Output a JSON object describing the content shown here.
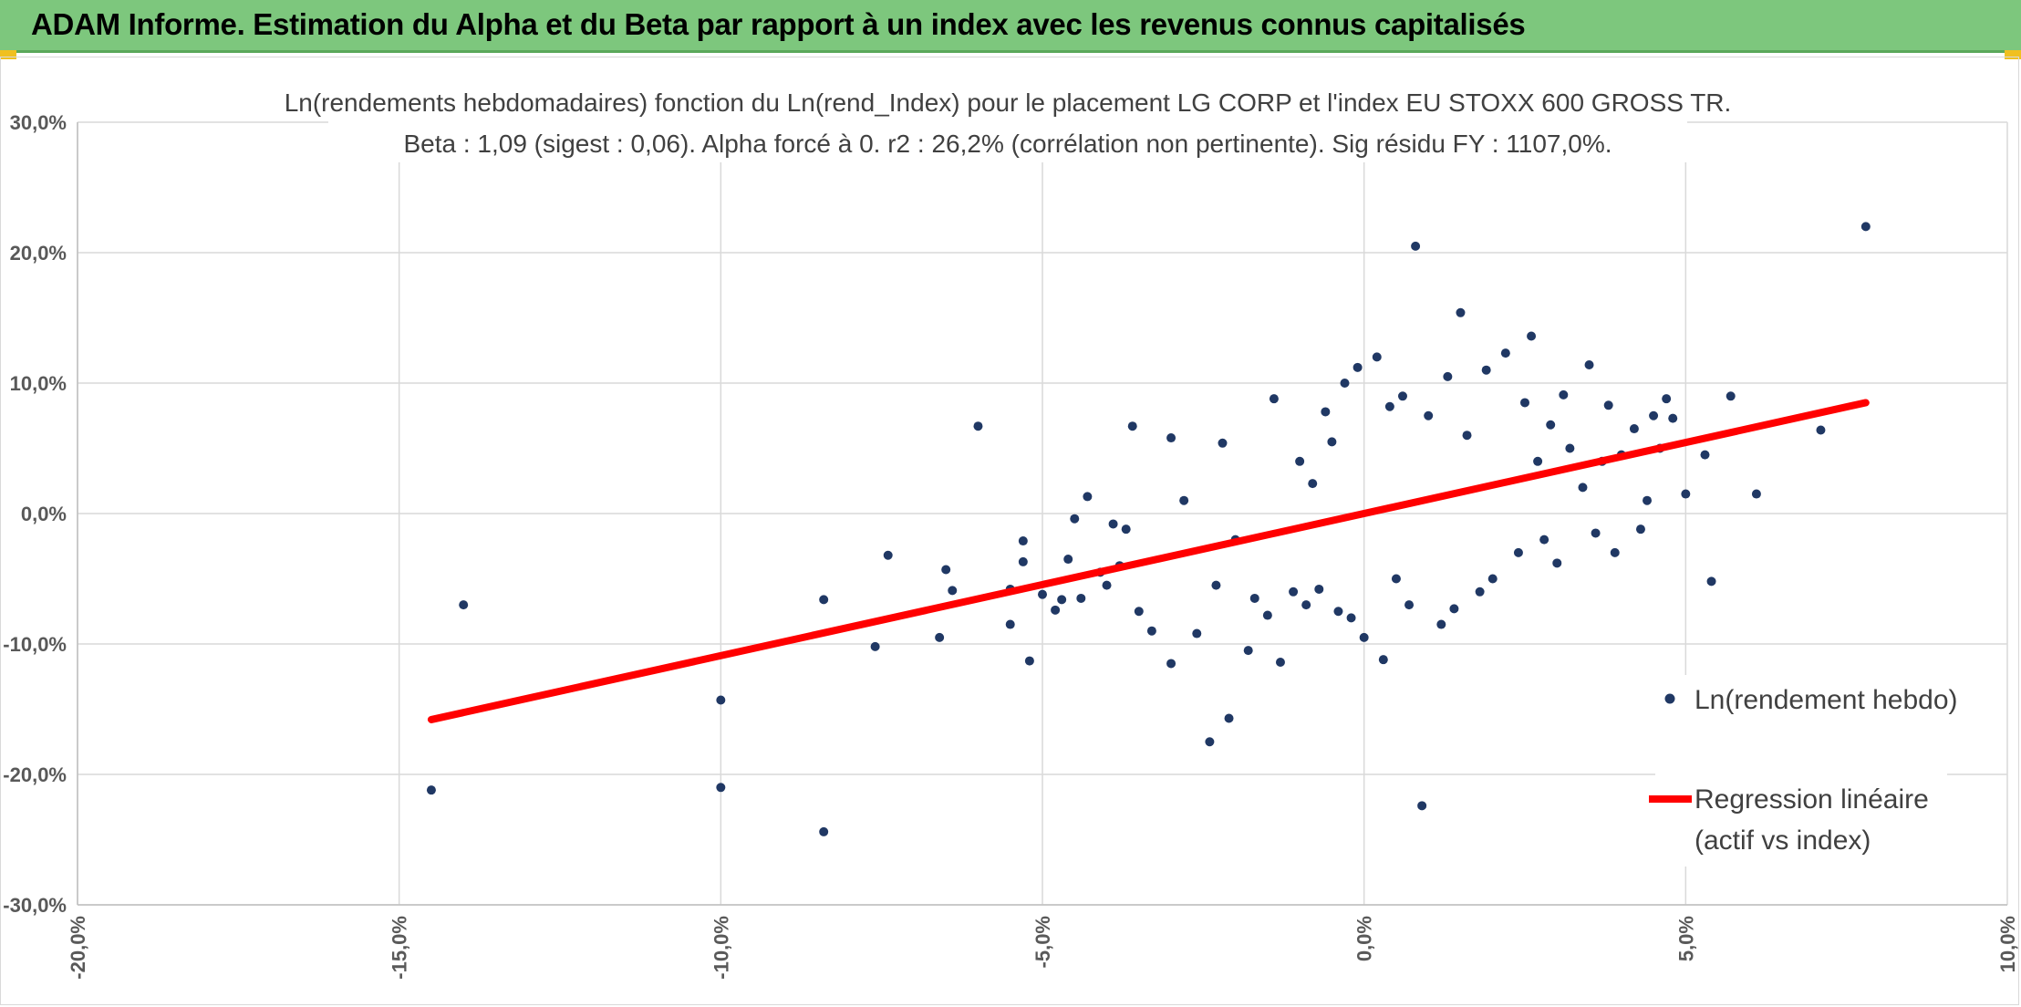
{
  "header": {
    "title": "ADAM Informe. Estimation du Alpha et du Beta par rapport à un index avec les revenus connus capitalisés"
  },
  "colors": {
    "header_bg": "#7dc77d",
    "points": "#203864",
    "regression": "#ff0000",
    "grid": "#d9d9d9"
  },
  "chart_data": {
    "type": "scatter",
    "title": "Ln(rendements hebdomadaires) fonction du Ln(rend_Index) pour le placement LG CORP et l'index EU STOXX 600 GROSS TR.",
    "subtitle": "Beta : 1,09 (sigest : 0,06). Alpha forcé à 0. r2 : 26,2% (corrélation non pertinente). Sig résidu FY : 1107,0%.",
    "xlim": [
      -0.2,
      0.1
    ],
    "ylim": [
      -0.3,
      0.3
    ],
    "x_ticks": [
      "-20,0%",
      "-15,0%",
      "-10,0%",
      "-5,0%",
      "0,0%",
      "5,0%",
      "10,0%"
    ],
    "y_ticks": [
      "30,0%",
      "20,0%",
      "10,0%",
      "0,0%",
      "-10,0%",
      "-20,0%",
      "-30,0%"
    ],
    "grid": true,
    "legend_position": "right",
    "series": [
      {
        "name": "Ln(rendement hebdo)",
        "kind": "points",
        "points": [
          [
            -0.145,
            -0.212
          ],
          [
            -0.14,
            -0.07
          ],
          [
            -0.1,
            -0.143
          ],
          [
            -0.1,
            -0.21
          ],
          [
            -0.084,
            -0.244
          ],
          [
            -0.084,
            -0.066
          ],
          [
            -0.076,
            -0.102
          ],
          [
            -0.074,
            -0.032
          ],
          [
            -0.066,
            -0.095
          ],
          [
            -0.065,
            -0.043
          ],
          [
            -0.064,
            -0.059
          ],
          [
            -0.06,
            0.067
          ],
          [
            -0.055,
            -0.058
          ],
          [
            -0.055,
            -0.085
          ],
          [
            -0.053,
            -0.037
          ],
          [
            -0.053,
            -0.021
          ],
          [
            -0.052,
            -0.113
          ],
          [
            -0.05,
            -0.062
          ],
          [
            -0.048,
            -0.074
          ],
          [
            -0.047,
            -0.066
          ],
          [
            -0.046,
            -0.035
          ],
          [
            -0.045,
            -0.004
          ],
          [
            -0.044,
            -0.065
          ],
          [
            -0.043,
            0.013
          ],
          [
            -0.041,
            -0.045
          ],
          [
            -0.04,
            -0.055
          ],
          [
            -0.039,
            -0.008
          ],
          [
            -0.038,
            -0.04
          ],
          [
            -0.037,
            -0.012
          ],
          [
            -0.036,
            0.067
          ],
          [
            -0.035,
            -0.075
          ],
          [
            -0.033,
            -0.09
          ],
          [
            -0.03,
            -0.115
          ],
          [
            -0.03,
            0.058
          ],
          [
            -0.028,
            0.01
          ],
          [
            -0.026,
            -0.092
          ],
          [
            -0.024,
            -0.175
          ],
          [
            -0.023,
            -0.055
          ],
          [
            -0.022,
            0.054
          ],
          [
            -0.021,
            -0.157
          ],
          [
            -0.02,
            -0.02
          ],
          [
            -0.018,
            -0.105
          ],
          [
            -0.017,
            -0.065
          ],
          [
            -0.015,
            -0.078
          ],
          [
            -0.014,
            0.088
          ],
          [
            -0.013,
            -0.114
          ],
          [
            -0.011,
            -0.06
          ],
          [
            -0.01,
            0.04
          ],
          [
            -0.009,
            -0.07
          ],
          [
            -0.008,
            0.023
          ],
          [
            -0.007,
            -0.058
          ],
          [
            -0.006,
            0.078
          ],
          [
            -0.005,
            0.055
          ],
          [
            -0.004,
            -0.075
          ],
          [
            -0.003,
            0.1
          ],
          [
            -0.002,
            -0.08
          ],
          [
            -0.001,
            0.112
          ],
          [
            0.0,
            -0.095
          ],
          [
            0.002,
            0.12
          ],
          [
            0.003,
            -0.112
          ],
          [
            0.004,
            0.082
          ],
          [
            0.005,
            -0.05
          ],
          [
            0.006,
            0.09
          ],
          [
            0.007,
            -0.07
          ],
          [
            0.008,
            0.205
          ],
          [
            0.009,
            -0.224
          ],
          [
            0.01,
            0.075
          ],
          [
            0.012,
            -0.085
          ],
          [
            0.013,
            0.105
          ],
          [
            0.014,
            -0.073
          ],
          [
            0.015,
            0.154
          ],
          [
            0.016,
            0.06
          ],
          [
            0.018,
            -0.06
          ],
          [
            0.019,
            0.11
          ],
          [
            0.02,
            -0.05
          ],
          [
            0.022,
            0.123
          ],
          [
            0.024,
            -0.03
          ],
          [
            0.025,
            0.085
          ],
          [
            0.026,
            0.136
          ],
          [
            0.027,
            0.04
          ],
          [
            0.028,
            -0.02
          ],
          [
            0.029,
            0.068
          ],
          [
            0.03,
            -0.038
          ],
          [
            0.031,
            0.091
          ],
          [
            0.032,
            0.05
          ],
          [
            0.034,
            0.02
          ],
          [
            0.035,
            0.114
          ],
          [
            0.036,
            -0.015
          ],
          [
            0.037,
            0.04
          ],
          [
            0.038,
            0.083
          ],
          [
            0.039,
            -0.03
          ],
          [
            0.04,
            0.045
          ],
          [
            0.042,
            0.065
          ],
          [
            0.043,
            -0.012
          ],
          [
            0.044,
            0.01
          ],
          [
            0.045,
            0.075
          ],
          [
            0.046,
            0.05
          ],
          [
            0.047,
            0.088
          ],
          [
            0.048,
            0.073
          ],
          [
            0.05,
            0.015
          ],
          [
            0.053,
            0.045
          ],
          [
            0.054,
            -0.052
          ],
          [
            0.057,
            0.09
          ],
          [
            0.061,
            0.015
          ],
          [
            0.071,
            0.064
          ],
          [
            0.078,
            0.22
          ]
        ]
      },
      {
        "name": "Regression linéaire",
        "name_line2": "(actif vs index)",
        "kind": "line",
        "points": [
          [
            -0.145,
            -0.158
          ],
          [
            0.078,
            0.085
          ]
        ]
      }
    ]
  }
}
